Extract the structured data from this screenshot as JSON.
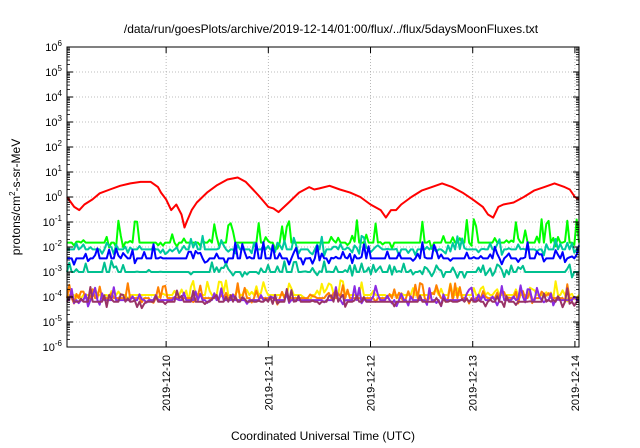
{
  "chart_data": {
    "type": "line",
    "title": "/data/run/goesPlots/archive/2019-12-14/01:00/flux/../flux/5daysMoonFluxes.txt",
    "xlabel": "Coordinated Universal Time (UTC)",
    "ylabel_base": "protons/cm",
    "ylabel_sup": "2",
    "ylabel_rest": "-s-sr-MeV",
    "yscale": "log",
    "ylim_exp": [
      -6,
      6
    ],
    "y_tick_base": "10",
    "y_tick_exps": [
      "-6",
      "-5",
      "-4",
      "-3",
      "-2",
      "-1",
      "0",
      "1",
      "2",
      "3",
      "4",
      "5",
      "6"
    ],
    "x_tick_labels": [
      "2019-12-10",
      "2019-12-11",
      "2019-12-12",
      "2019-12-13",
      "2019-12-14"
    ],
    "xlim_days": [
      -0.97,
      4.04
    ],
    "grid": true,
    "series": [
      {
        "color": "#ff0000",
        "shape": "smooth",
        "x": [
          -0.97,
          -0.9,
          -0.85,
          -0.8,
          -0.72,
          -0.65,
          -0.55,
          -0.45,
          -0.35,
          -0.25,
          -0.15,
          -0.08,
          -0.05,
          0.0,
          0.05,
          0.1,
          0.15,
          0.18,
          0.2,
          0.25,
          0.3,
          0.4,
          0.5,
          0.6,
          0.7,
          0.78,
          0.85,
          0.9,
          0.95,
          1.0,
          1.05,
          1.1,
          1.2,
          1.3,
          1.4,
          1.45,
          1.5,
          1.6,
          1.7,
          1.8,
          1.9,
          2.0,
          2.1,
          2.15,
          2.2,
          2.25,
          2.3,
          2.4,
          2.5,
          2.6,
          2.7,
          2.8,
          2.9,
          3.0,
          3.1,
          3.15,
          3.2,
          3.25,
          3.3,
          3.4,
          3.5,
          3.6,
          3.7,
          3.8,
          3.9,
          3.95,
          4.0,
          4.04
        ],
        "y": [
          1.0,
          0.4,
          0.3,
          0.5,
          0.8,
          1.4,
          2.0,
          2.8,
          3.5,
          4.0,
          4.0,
          2.5,
          1.5,
          0.8,
          0.3,
          0.5,
          0.2,
          0.06,
          0.1,
          0.3,
          0.6,
          1.5,
          3.0,
          5.0,
          6.0,
          4.0,
          2.0,
          1.2,
          0.7,
          0.4,
          0.35,
          0.25,
          0.6,
          1.5,
          2.5,
          2.0,
          2.2,
          2.8,
          2.0,
          1.5,
          1.0,
          0.5,
          0.3,
          0.15,
          0.3,
          0.3,
          0.5,
          1.0,
          1.8,
          2.5,
          3.5,
          2.5,
          1.5,
          0.8,
          0.4,
          0.2,
          0.15,
          0.4,
          0.5,
          0.6,
          1.0,
          1.8,
          2.5,
          3.5,
          2.5,
          2.0,
          1.0,
          0.8
        ]
      },
      {
        "color": "#00ff00",
        "shape": "noisy",
        "base": 0.015,
        "amp": 8.0,
        "seed": 11
      },
      {
        "color": "#00c8a0",
        "shape": "noisy",
        "base": 0.008,
        "amp": 2.5,
        "seed": 23
      },
      {
        "color": "#0000ff",
        "shape": "noisy",
        "base": 0.0035,
        "amp": 3.5,
        "seed": 37
      },
      {
        "color": "#00c090",
        "shape": "noisy",
        "base": 0.001,
        "amp": 1.8,
        "seed": 51
      },
      {
        "color": "#ffee00",
        "shape": "noisy",
        "base": 0.00012,
        "amp": 3.0,
        "seed": 67
      },
      {
        "color": "#ff8000",
        "shape": "noisy",
        "base": 9e-05,
        "amp": 3.0,
        "seed": 73
      },
      {
        "color": "#8a2be2",
        "shape": "noisy",
        "base": 7.5e-05,
        "amp": 3.0,
        "seed": 79
      },
      {
        "color": "#993366",
        "shape": "noisy",
        "base": 6.5e-05,
        "amp": 3.0,
        "seed": 83
      }
    ]
  }
}
